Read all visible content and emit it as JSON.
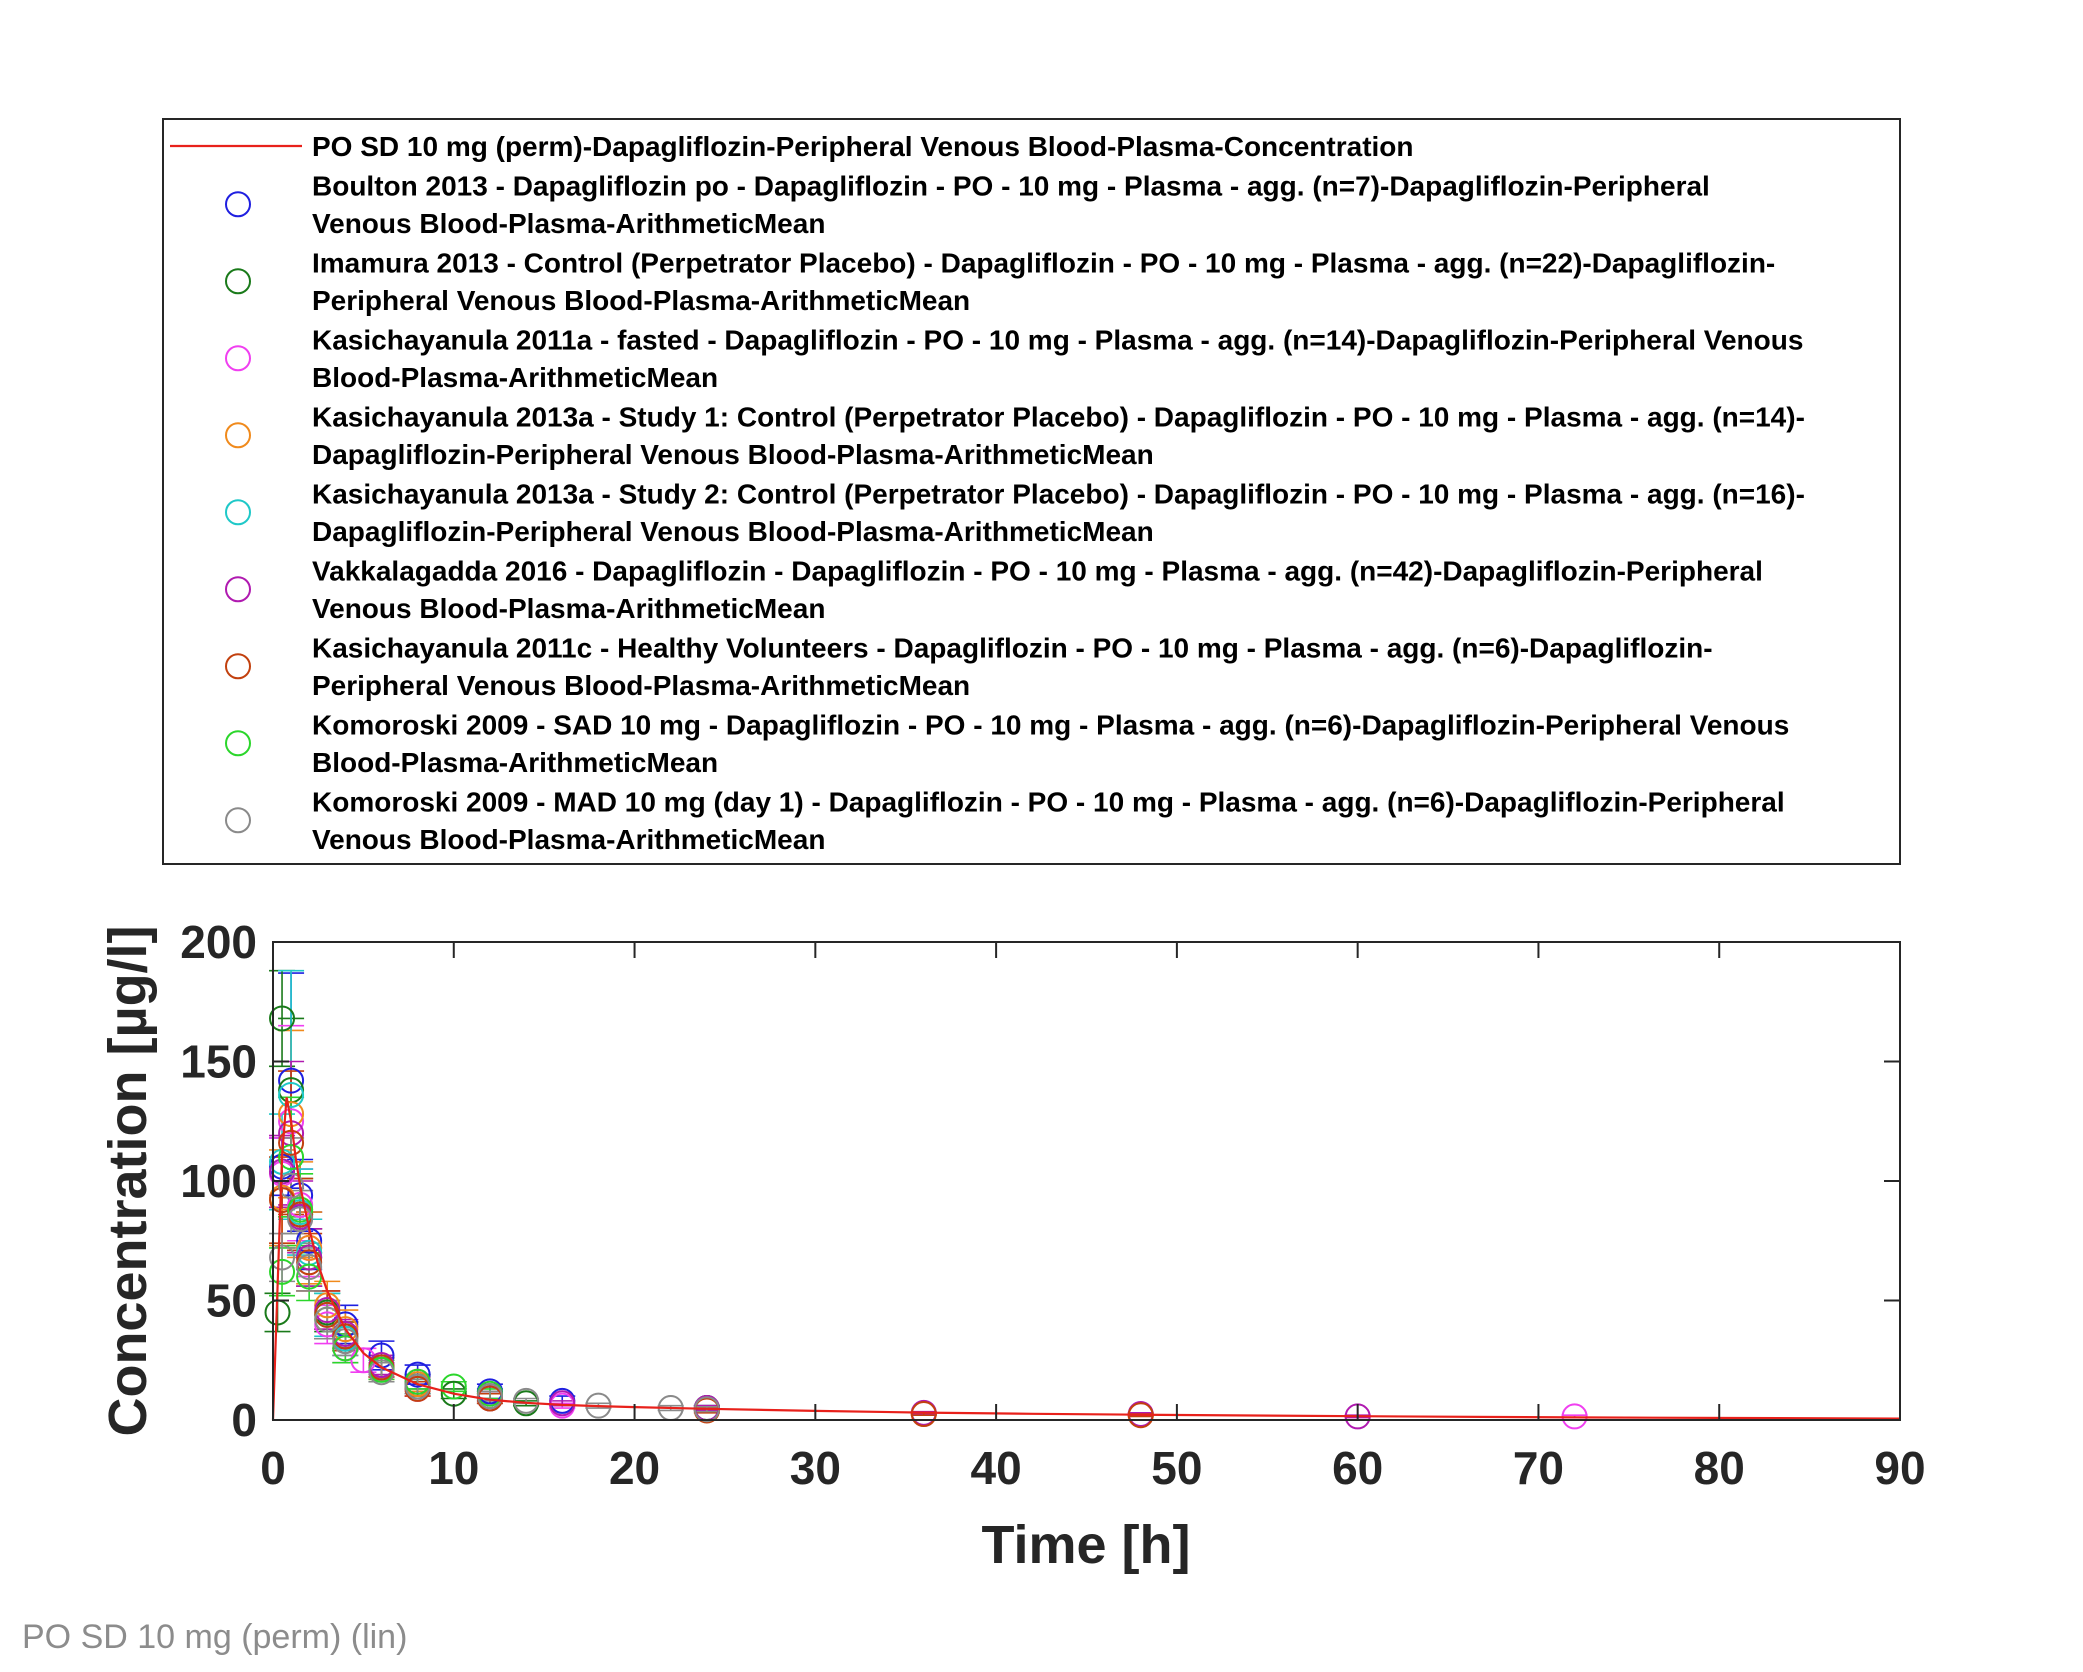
{
  "figure": {
    "caption": "PO SD 10 mg (perm) (lin)"
  },
  "chart_data": {
    "type": "scatter",
    "title": "",
    "xlabel": "Time [h]",
    "ylabel": "Concentration [µg/l]",
    "xlim": [
      0,
      90
    ],
    "ylim": [
      0,
      200
    ],
    "xticks": [
      "0",
      "10",
      "20",
      "30",
      "40",
      "50",
      "60",
      "70",
      "80",
      "90"
    ],
    "yticks": [
      "0",
      "50",
      "100",
      "150",
      "200"
    ],
    "grid": false,
    "legend_placement": "above plot",
    "line_series": [
      {
        "legend": [
          "PO SD 10 mg (perm)-Dapagliflozin-Peripheral Venous Blood-Plasma-Concentration"
        ],
        "color": "#e8211b",
        "x": [
          0,
          0.25,
          0.5,
          0.75,
          1,
          1.25,
          1.5,
          2,
          2.5,
          3,
          4,
          5,
          6,
          8,
          10,
          12,
          14,
          16,
          18,
          20,
          24,
          30,
          36,
          42,
          48,
          60,
          72,
          90
        ],
        "y": [
          0,
          55,
          110,
          135,
          125,
          110,
          98,
          80,
          65,
          54,
          38,
          28,
          22,
          15,
          11,
          8.5,
          7.2,
          6.3,
          5.8,
          5.4,
          4.7,
          3.8,
          3.1,
          2.6,
          2.2,
          1.6,
          1.1,
          0.6
        ]
      }
    ],
    "series": [
      {
        "legend": [
          "Boulton 2013 - Dapagliflozin po - Dapagliflozin - PO - 10 mg - Plasma - agg. (n=7)-Dapagliflozin-Peripheral",
          "Venous Blood-Plasma-ArithmeticMean"
        ],
        "color": "#1f1fe0",
        "x": [
          0.5,
          1,
          1.5,
          2,
          4,
          6,
          8,
          12,
          16,
          24
        ],
        "y": [
          106,
          142,
          94,
          75,
          40,
          27,
          19,
          12,
          8,
          5
        ],
        "err": [
          12,
          45,
          15,
          12,
          8,
          6,
          4,
          3,
          2,
          1
        ]
      },
      {
        "legend": [
          "Imamura 2013 - Control (Perpetrator Placebo) - Dapagliflozin - PO - 10 mg - Plasma - agg. (n=22)-Dapagliflozin-",
          "Peripheral Venous Blood-Plasma-ArithmeticMean"
        ],
        "color": "#1a7a1a",
        "x": [
          0.25,
          0.5,
          1,
          1.5,
          2,
          3,
          4,
          6,
          8,
          10,
          12,
          14,
          24
        ],
        "y": [
          45,
          168,
          138,
          86,
          68,
          45,
          35,
          22,
          14,
          11,
          9,
          7,
          5
        ],
        "err": [
          8,
          20,
          30,
          15,
          12,
          8,
          6,
          4,
          3,
          2,
          2,
          1,
          1
        ]
      },
      {
        "legend": [
          "Kasichayanula 2011a - fasted - Dapagliflozin - PO - 10 mg - Plasma - agg. (n=14)-Dapagliflozin-Peripheral Venous",
          "Blood-Plasma-ArithmeticMean"
        ],
        "color": "#f03ff0",
        "x": [
          0.5,
          1,
          1.5,
          2,
          3,
          4,
          5,
          6,
          8,
          12,
          16,
          72
        ],
        "y": [
          103,
          125,
          90,
          72,
          40,
          30,
          25,
          22,
          13,
          9,
          6,
          1.5
        ],
        "err": [
          15,
          40,
          15,
          12,
          8,
          6,
          5,
          4,
          3,
          2,
          1,
          0.5
        ]
      },
      {
        "legend": [
          "Kasichayanula 2013a - Study 1: Control (Perpetrator Placebo) - Dapagliflozin - PO - 10 mg - Plasma - agg. (n=14)-",
          "Dapagliflozin-Peripheral Venous Blood-Plasma-ArithmeticMean"
        ],
        "color": "#f08a1c",
        "x": [
          0.5,
          1,
          1.5,
          2,
          3,
          4,
          6,
          8
        ],
        "y": [
          93,
          128,
          88,
          72,
          48,
          38,
          22,
          15
        ],
        "err": [
          20,
          35,
          20,
          15,
          10,
          8,
          5,
          3
        ]
      },
      {
        "legend": [
          "Kasichayanula 2013a - Study 2: Control (Perpetrator Placebo) - Dapagliflozin - PO - 10 mg - Plasma - agg. (n=16)-",
          "Dapagliflozin-Peripheral Venous Blood-Plasma-ArithmeticMean"
        ],
        "color": "#1fc8c8",
        "x": [
          0.5,
          1,
          1.5,
          2,
          3,
          4,
          6,
          8,
          12
        ],
        "y": [
          108,
          136,
          87,
          70,
          44,
          34,
          21,
          14,
          10
        ],
        "err": [
          20,
          52,
          18,
          14,
          9,
          7,
          5,
          3,
          2
        ]
      },
      {
        "legend": [
          "Vakkalagadda 2016 - Dapagliflozin - Dapagliflozin - PO - 10 mg - Plasma - agg. (n=42)-Dapagliflozin-Peripheral",
          "Venous Blood-Plasma-ArithmeticMean"
        ],
        "color": "#b01ab0",
        "x": [
          0.5,
          1,
          1.5,
          2,
          3,
          4,
          6,
          8,
          12,
          16,
          24,
          36,
          48,
          60
        ],
        "y": [
          104,
          120,
          85,
          68,
          46,
          36,
          23,
          16,
          10,
          7,
          5,
          3,
          2.5,
          1.5
        ],
        "err": [
          15,
          30,
          15,
          12,
          8,
          6,
          4,
          3,
          2,
          1,
          1,
          0.5,
          0.5,
          0.5
        ]
      },
      {
        "legend": [
          "Kasichayanula 2011c - Healthy Volunteers - Dapagliflozin - PO - 10 mg - Plasma - agg. (n=6)-Dapagliflozin-",
          "Peripheral Venous Blood-Plasma-ArithmeticMean"
        ],
        "color": "#c2400e",
        "x": [
          0.5,
          1,
          1.5,
          2,
          3,
          4,
          6,
          8,
          12,
          24,
          36,
          48
        ],
        "y": [
          92,
          116,
          86,
          66,
          44,
          35,
          22,
          13,
          9,
          4,
          2.5,
          2
        ],
        "err": [
          18,
          30,
          15,
          12,
          10,
          6,
          4,
          3,
          2,
          1,
          0.5,
          0.5
        ]
      },
      {
        "legend": [
          "Komoroski 2009 - SAD 10 mg - Dapagliflozin - PO - 10 mg - Plasma - agg. (n=6)-Dapagliflozin-Peripheral Venous",
          "Blood-Plasma-ArithmeticMean"
        ],
        "color": "#2bd62b",
        "x": [
          0.5,
          1,
          1.5,
          2,
          3,
          4,
          6,
          8,
          10,
          12
        ],
        "y": [
          62,
          110,
          88,
          60,
          42,
          30,
          21,
          16,
          14,
          11
        ],
        "err": [
          10,
          25,
          15,
          10,
          8,
          6,
          4,
          3,
          2,
          2
        ]
      },
      {
        "legend": [
          "Komoroski 2009 - MAD 10 mg (day 1) - Dapagliflozin - PO - 10 mg - Plasma - agg. (n=6)-Dapagliflozin-Peripheral",
          "Venous Blood-Plasma-ArithmeticMean"
        ],
        "color": "#8a8a8a",
        "x": [
          0.5,
          1,
          1.5,
          2,
          3,
          4,
          6,
          8,
          12,
          14,
          18,
          22,
          24
        ],
        "y": [
          68,
          98,
          84,
          64,
          42,
          33,
          20,
          14,
          10,
          8,
          6,
          5,
          4.5
        ],
        "err": [
          10,
          20,
          12,
          10,
          8,
          6,
          4,
          3,
          2,
          1,
          1,
          1,
          1
        ]
      }
    ]
  }
}
